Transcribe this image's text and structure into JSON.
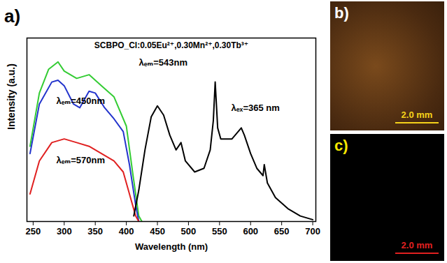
{
  "chart_data": {
    "type": "line",
    "panel_label": "a)",
    "title": "SCBPO_Cl:0.05Eu²⁺,0.30Mn²⁺,0.30Tb³⁺",
    "x_label": "Wavelength (nm)",
    "y_label": "Intensity (a.u.)",
    "xlim": [
      240,
      705
    ],
    "xticks": [
      250,
      300,
      350,
      400,
      450,
      500,
      550,
      600,
      650,
      700
    ],
    "ylim": [
      0,
      100
    ],
    "tick_labels": "x",
    "series": [
      {
        "name": "λₑₘ=543nm",
        "color": "#33cc33",
        "x": [
          245,
          260,
          275,
          290,
          300,
          320,
          340,
          360,
          380,
          400,
          410,
          420,
          425
        ],
        "values": [
          41,
          70,
          83,
          87,
          82,
          78,
          80,
          74,
          68,
          52,
          27,
          3,
          0
        ]
      },
      {
        "name": "λₑₘ=450nm",
        "color": "#2233cc",
        "x": [
          245,
          260,
          280,
          290,
          300,
          315,
          325,
          340,
          350,
          365,
          380,
          395,
          405,
          415,
          420
        ],
        "values": [
          37,
          64,
          76,
          77,
          74,
          64,
          62,
          71,
          70,
          62,
          56,
          49,
          31,
          9,
          0
        ]
      },
      {
        "name": "λₑₘ=570nm",
        "color": "#e02020",
        "x": [
          245,
          260,
          280,
          300,
          320,
          340,
          360,
          380,
          395,
          405,
          415,
          420
        ],
        "values": [
          15,
          33,
          43,
          45,
          43,
          41,
          37,
          33,
          27,
          15,
          3,
          0
        ]
      },
      {
        "name": "λₑₓ=365 nm",
        "color": "#000000",
        "x": [
          412,
          420,
          430,
          440,
          450,
          460,
          470,
          480,
          488,
          495,
          510,
          525,
          535,
          540,
          543,
          547,
          552,
          560,
          570,
          580,
          585,
          590,
          600,
          610,
          620,
          622,
          627,
          640,
          660,
          680,
          700
        ],
        "values": [
          3,
          17,
          39,
          57,
          63,
          58,
          47,
          39,
          43,
          33,
          27,
          29,
          39,
          55,
          76,
          51,
          45,
          45,
          45,
          49,
          51,
          47,
          37,
          29,
          25,
          31,
          21,
          13,
          7,
          3,
          1
        ]
      }
    ]
  },
  "panels": [
    {
      "label": "b)",
      "scale_bar": "2.0 mm",
      "color": "#f5d21a"
    },
    {
      "label": "c)",
      "scale_bar": "2.0 mm",
      "color": "#e02020"
    }
  ]
}
